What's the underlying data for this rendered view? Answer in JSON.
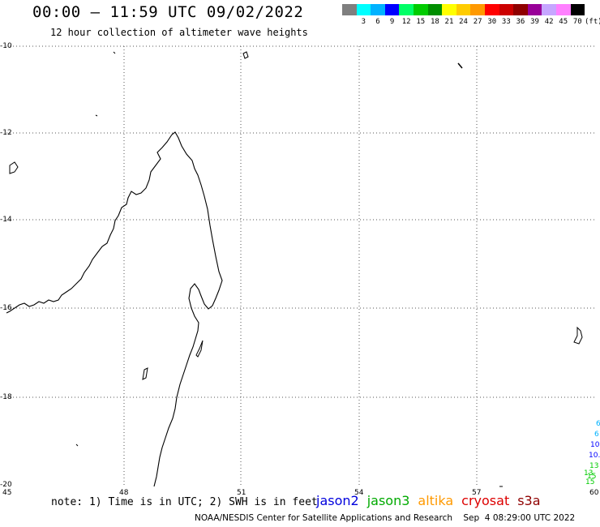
{
  "header": {
    "title": "00:00 – 11:59 UTC 09/02/2022",
    "subtitle": "12 hour collection of altimeter wave heights"
  },
  "color_scale": {
    "unit": "(ft)",
    "bins": [
      {
        "label": "",
        "color": "#7f7f7f"
      },
      {
        "label": "3",
        "color": "#00ffff"
      },
      {
        "label": "6",
        "color": "#00b2ff"
      },
      {
        "label": "9",
        "color": "#0000ff"
      },
      {
        "label": "12",
        "color": "#00ff66"
      },
      {
        "label": "15",
        "color": "#00cc00"
      },
      {
        "label": "18",
        "color": "#008f00"
      },
      {
        "label": "21",
        "color": "#ffff00"
      },
      {
        "label": "24",
        "color": "#ffcc00"
      },
      {
        "label": "27",
        "color": "#ff9900"
      },
      {
        "label": "30",
        "color": "#ff0000"
      },
      {
        "label": "33",
        "color": "#cc0000"
      },
      {
        "label": "36",
        "color": "#8f0000"
      },
      {
        "label": "39",
        "color": "#990099"
      },
      {
        "label": "42",
        "color": "#c6a6ff"
      },
      {
        "label": "45",
        "color": "#ff80ff"
      },
      {
        "label": "70",
        "color": "#000000"
      }
    ]
  },
  "axes": {
    "longitude_labels": [
      "45",
      "48",
      "51",
      "54",
      "57",
      "60"
    ],
    "latitude_labels": [
      "-10",
      "-12",
      "-14",
      "-16",
      "-18",
      "-20"
    ]
  },
  "edge_values": [
    {
      "text": "6",
      "color": "#00b2ff"
    },
    {
      "text": "6",
      "color": "#00b2ff"
    },
    {
      "text": "10",
      "color": "#0000ff"
    },
    {
      "text": "10.",
      "color": "#0000ff"
    },
    {
      "text": "13",
      "color": "#00cc00"
    },
    {
      "text": "13",
      "color": "#00cc00"
    },
    {
      "text": "15",
      "color": "#00cc00"
    },
    {
      "text": "15",
      "color": "#00cc00"
    }
  ],
  "note": "note: 1) Time is in UTC; 2) SWH is in feet",
  "satellites": [
    {
      "name": "jason2",
      "color": "#0000dd"
    },
    {
      "name": "jason3",
      "color": "#00aa00"
    },
    {
      "name": "altika",
      "color": "#ff9900"
    },
    {
      "name": "cryosat",
      "color": "#dd0000"
    },
    {
      "name": "s3a",
      "color": "#8f0000"
    }
  ],
  "footer": "NOAA/NESDIS Center for Satellite Applications and Research    Sep  4 08:29:00 UTC 2022"
}
